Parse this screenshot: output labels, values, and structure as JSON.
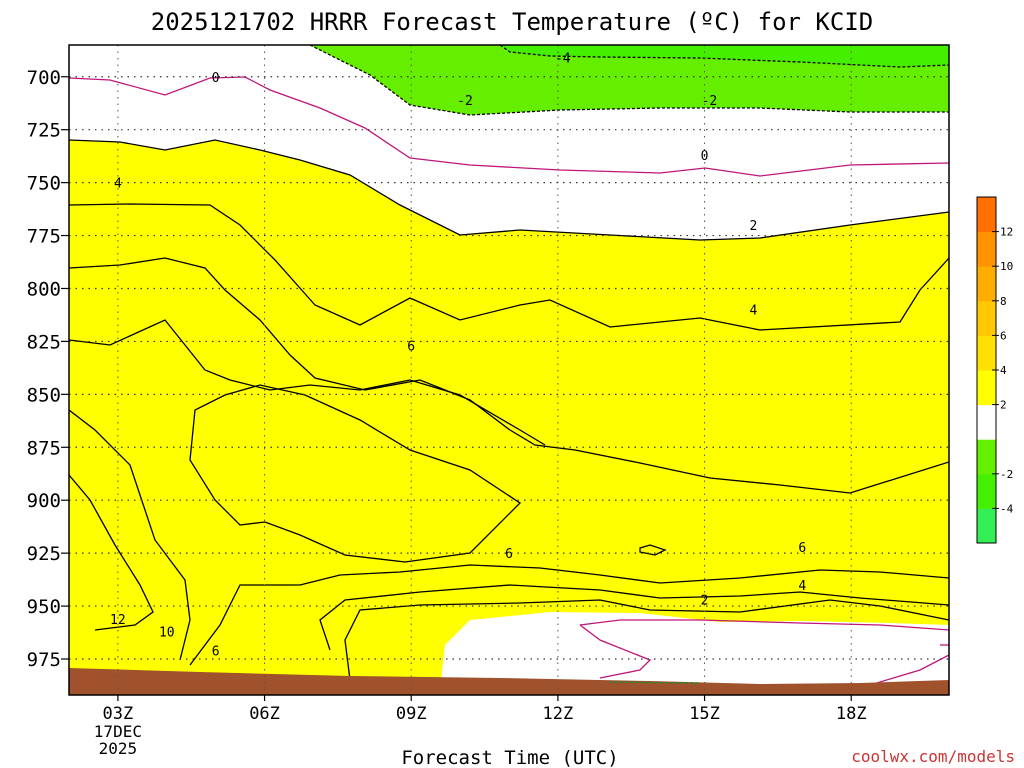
{
  "chart_data": {
    "type": "heatmap",
    "title": "2025121702 HRRR Forecast Temperature (ºC) for KCID",
    "xlabel": "Forecast Time (UTC)",
    "ylabel": "",
    "x_ticks": [
      {
        "hour": 3,
        "label": "03Z",
        "sub": [
          "17DEC",
          "2025"
        ]
      },
      {
        "hour": 6,
        "label": "06Z"
      },
      {
        "hour": 9,
        "label": "09Z"
      },
      {
        "hour": 12,
        "label": "12Z"
      },
      {
        "hour": 15,
        "label": "15Z"
      },
      {
        "hour": 18,
        "label": "18Z"
      }
    ],
    "xlim": [
      2,
      20
    ],
    "y_ticks": [
      700,
      725,
      750,
      775,
      800,
      825,
      850,
      875,
      900,
      925,
      950,
      975
    ],
    "ylim_pressure_hPa": [
      685,
      992
    ],
    "colorbar": {
      "levels": [
        -6,
        -4,
        -2,
        0,
        2,
        4,
        6,
        8,
        10,
        12,
        14
      ],
      "colors": [
        "#33ee55",
        "#44f000",
        "#66ee00",
        "#ffffff",
        "#ffff00",
        "#ffe000",
        "#ffc800",
        "#ffae00",
        "#ff9400",
        "#ff7000"
      ],
      "tick_labels": [
        "-4",
        "-2",
        "2",
        "4",
        "6",
        "8",
        "10",
        "12"
      ],
      "tick_values": [
        -4,
        -2,
        2,
        4,
        6,
        8,
        10,
        12
      ]
    },
    "contour_labels": [
      {
        "text": "-4",
        "hour": 12.1,
        "p": 691
      },
      {
        "text": "0",
        "hour": 5.0,
        "p": 700
      },
      {
        "text": "-2",
        "hour": 10.1,
        "p": 711
      },
      {
        "text": "-2",
        "hour": 15.1,
        "p": 711
      },
      {
        "text": "0",
        "hour": 15.0,
        "p": 737
      },
      {
        "text": "4",
        "hour": 3.0,
        "p": 750
      },
      {
        "text": "2",
        "hour": 16.0,
        "p": 770
      },
      {
        "text": "4",
        "hour": 16.0,
        "p": 810
      },
      {
        "text": "6",
        "hour": 9.0,
        "p": 827
      },
      {
        "text": "6",
        "hour": 11.0,
        "p": 925
      },
      {
        "text": "6",
        "hour": 17.0,
        "p": 922
      },
      {
        "text": "4",
        "hour": 17.0,
        "p": 940
      },
      {
        "text": "2",
        "hour": 15.0,
        "p": 947
      },
      {
        "text": "12",
        "hour": 3.0,
        "p": 956
      },
      {
        "text": "10",
        "hour": 4.0,
        "p": 962
      },
      {
        "text": "6",
        "hour": 5.0,
        "p": 971
      }
    ],
    "grid": true,
    "legend": "right"
  },
  "credit": "coolwx.com/models"
}
